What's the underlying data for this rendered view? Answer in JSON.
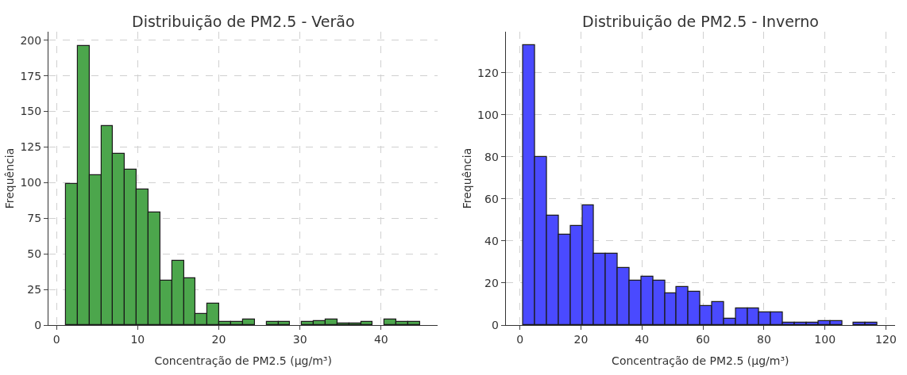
{
  "chart_data": [
    {
      "type": "histogram",
      "title": "Distribuição de PM2.5 - Verão",
      "xlabel": "Concentração de PM2.5 (µg/m³)",
      "ylabel": "Frequência",
      "color": "#4ca64c",
      "grid": true,
      "bins": [
        1.15,
        2.6,
        4.06,
        5.52,
        6.97,
        8.43,
        9.88,
        11.33,
        12.79,
        14.24,
        15.7,
        17.15,
        18.61,
        20.06,
        21.52,
        22.97,
        24.43,
        25.88,
        27.34,
        28.8,
        30.25,
        31.71,
        33.16,
        34.61,
        36.07,
        37.53,
        38.98,
        40.43,
        41.89,
        43.35,
        44.8
      ],
      "values": [
        99,
        196,
        105,
        140,
        120,
        109,
        95,
        79,
        31,
        45,
        33,
        8,
        15,
        2,
        2,
        4,
        0,
        2,
        2,
        0,
        2,
        3,
        4,
        1,
        1,
        2,
        0,
        4,
        2,
        2
      ],
      "xlim": [
        -1.0,
        47.0
      ],
      "ylim": [
        0,
        206
      ],
      "xticks": [
        0,
        10,
        20,
        30,
        40
      ],
      "yticks": [
        0,
        25,
        50,
        75,
        100,
        125,
        150,
        175,
        200
      ]
    },
    {
      "type": "histogram",
      "title": "Distribuição de PM2.5 - Inverno",
      "xlabel": "Concentração de PM2.5 (µg/m³)",
      "ylabel": "Frequência",
      "color": "#4a4aff",
      "grid": true,
      "bins": [
        1.1,
        4.97,
        8.84,
        12.71,
        16.58,
        20.45,
        24.32,
        28.19,
        32.06,
        35.93,
        39.8,
        43.67,
        47.54,
        51.41,
        55.28,
        59.15,
        63.02,
        66.89,
        70.76,
        74.63,
        78.5,
        82.37,
        86.24,
        90.11,
        93.98,
        97.85,
        101.72,
        105.59,
        109.46,
        113.33,
        117.2
      ],
      "values": [
        133,
        80,
        52,
        43,
        47,
        57,
        34,
        34,
        27,
        21,
        23,
        21,
        15,
        18,
        16,
        9,
        11,
        3,
        8,
        8,
        6,
        6,
        1,
        1,
        1,
        2,
        2,
        0,
        1,
        1
      ],
      "xlim": [
        -4.7,
        123.0
      ],
      "ylim": [
        0,
        139.6
      ],
      "xticks": [
        0,
        20,
        40,
        60,
        80,
        100,
        120
      ],
      "yticks": [
        0,
        20,
        40,
        60,
        80,
        100,
        120
      ]
    }
  ]
}
